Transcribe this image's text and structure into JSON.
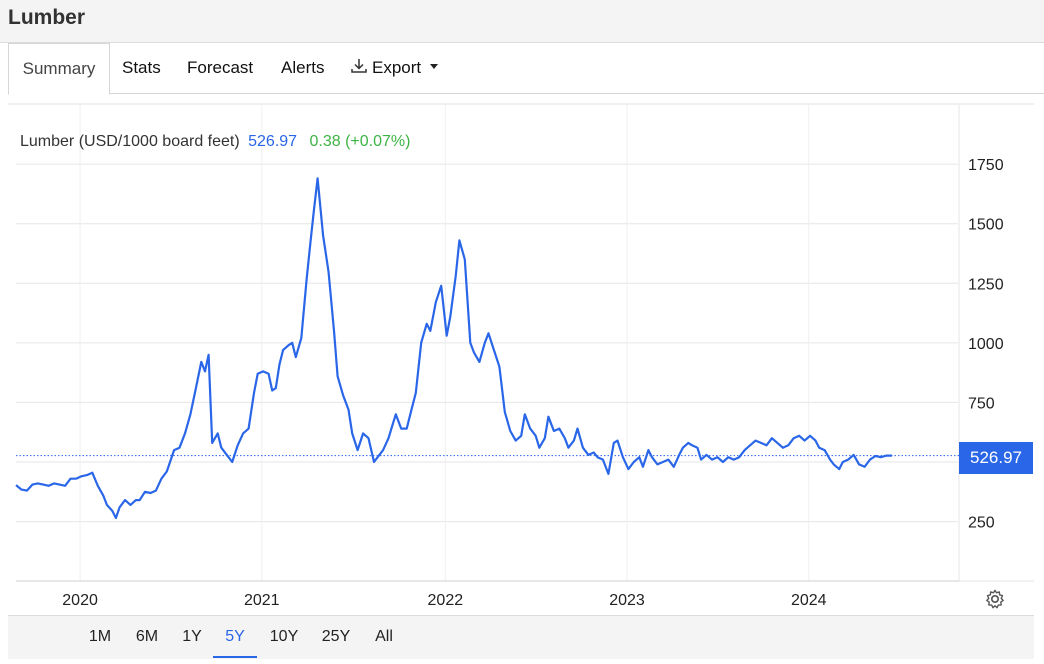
{
  "title": "Lumber",
  "tabs": [
    {
      "label": "Summary",
      "active": true
    },
    {
      "label": "Stats"
    },
    {
      "label": "Forecast"
    },
    {
      "label": "Alerts"
    },
    {
      "label": "Export",
      "icon": "download-icon",
      "dropdown": true
    }
  ],
  "legend": {
    "label": "Lumber (USD/1000 board feet)",
    "value": "526.97",
    "change": "0.38 (+0.07%)"
  },
  "price_tag": "526.97",
  "ranges": [
    "1M",
    "6M",
    "1Y",
    "5Y",
    "10Y",
    "25Y",
    "All"
  ],
  "active_range": "5Y",
  "colors": {
    "line": "#2a66e8",
    "change": "#3cb444",
    "grid": "#e6e6e6"
  },
  "chart_data": {
    "type": "line",
    "title": "Lumber (USD/1000 board feet)",
    "xlabel": "",
    "ylabel": "",
    "x_ticks": [
      "2020",
      "2021",
      "2022",
      "2023",
      "2024"
    ],
    "y_ticks": [
      250,
      500,
      750,
      1000,
      1250,
      1500,
      1750
    ],
    "y_tick_labels": [
      "250",
      "750",
      "1000",
      "1250",
      "1500",
      "1750"
    ],
    "ylim": [
      0,
      2000
    ],
    "xlim": [
      2019.83,
      2024.97
    ],
    "grid": true,
    "last_value": 526.97,
    "series": [
      {
        "name": "Lumber",
        "points": [
          [
            2019.83,
            403
          ],
          [
            2019.86,
            384
          ],
          [
            2019.89,
            380
          ],
          [
            2019.92,
            405
          ],
          [
            2019.95,
            410
          ],
          [
            2019.98,
            405
          ],
          [
            2020.01,
            400
          ],
          [
            2020.04,
            410
          ],
          [
            2020.07,
            405
          ],
          [
            2020.1,
            400
          ],
          [
            2020.13,
            430
          ],
          [
            2020.16,
            430
          ],
          [
            2020.19,
            440
          ],
          [
            2020.22,
            445
          ],
          [
            2020.25,
            455
          ],
          [
            2020.28,
            400
          ],
          [
            2020.31,
            360
          ],
          [
            2020.33,
            320
          ],
          [
            2020.36,
            295
          ],
          [
            2020.38,
            265
          ],
          [
            2020.4,
            310
          ],
          [
            2020.43,
            340
          ],
          [
            2020.46,
            320
          ],
          [
            2020.49,
            340
          ],
          [
            2020.51,
            340
          ],
          [
            2020.54,
            375
          ],
          [
            2020.57,
            370
          ],
          [
            2020.6,
            380
          ],
          [
            2020.63,
            430
          ],
          [
            2020.66,
            460
          ],
          [
            2020.7,
            550
          ],
          [
            2020.73,
            560
          ],
          [
            2020.76,
            620
          ],
          [
            2020.79,
            700
          ],
          [
            2020.82,
            810
          ],
          [
            2020.85,
            920
          ],
          [
            2020.87,
            880
          ],
          [
            2020.89,
            950
          ],
          [
            2020.91,
            580
          ],
          [
            2020.94,
            620
          ],
          [
            2020.96,
            560
          ],
          [
            2020.99,
            530
          ],
          [
            2021.02,
            500
          ],
          [
            2021.05,
            570
          ],
          [
            2021.08,
            620
          ],
          [
            2021.11,
            640
          ],
          [
            2021.14,
            790
          ],
          [
            2021.16,
            870
          ],
          [
            2021.19,
            880
          ],
          [
            2021.22,
            870
          ],
          [
            2021.24,
            800
          ],
          [
            2021.26,
            810
          ],
          [
            2021.28,
            910
          ],
          [
            2021.3,
            970
          ],
          [
            2021.33,
            990
          ],
          [
            2021.35,
            1000
          ],
          [
            2021.37,
            940
          ],
          [
            2021.4,
            1020
          ],
          [
            2021.43,
            1270
          ],
          [
            2021.45,
            1420
          ],
          [
            2021.47,
            1560
          ],
          [
            2021.49,
            1690
          ],
          [
            2021.52,
            1450
          ],
          [
            2021.55,
            1300
          ],
          [
            2021.58,
            1050
          ],
          [
            2021.6,
            860
          ],
          [
            2021.63,
            780
          ],
          [
            2021.66,
            720
          ],
          [
            2021.68,
            620
          ],
          [
            2021.71,
            550
          ],
          [
            2021.74,
            620
          ],
          [
            2021.77,
            600
          ],
          [
            2021.8,
            500
          ],
          [
            2021.82,
            520
          ],
          [
            2021.85,
            550
          ],
          [
            2021.88,
            600
          ],
          [
            2021.9,
            650
          ],
          [
            2021.92,
            700
          ],
          [
            2021.95,
            640
          ],
          [
            2021.98,
            640
          ],
          [
            2022.0,
            700
          ],
          [
            2022.03,
            790
          ],
          [
            2022.06,
            1000
          ],
          [
            2022.09,
            1080
          ],
          [
            2022.11,
            1050
          ],
          [
            2022.14,
            1170
          ],
          [
            2022.17,
            1240
          ],
          [
            2022.2,
            1030
          ],
          [
            2022.22,
            1110
          ],
          [
            2022.25,
            1280
          ],
          [
            2022.27,
            1430
          ],
          [
            2022.3,
            1350
          ],
          [
            2022.33,
            1000
          ],
          [
            2022.35,
            960
          ],
          [
            2022.38,
            920
          ],
          [
            2022.41,
            1000
          ],
          [
            2022.43,
            1040
          ],
          [
            2022.46,
            970
          ],
          [
            2022.49,
            900
          ],
          [
            2022.52,
            710
          ],
          [
            2022.55,
            630
          ],
          [
            2022.58,
            590
          ],
          [
            2022.61,
            610
          ],
          [
            2022.63,
            700
          ],
          [
            2022.66,
            640
          ],
          [
            2022.69,
            610
          ],
          [
            2022.71,
            560
          ],
          [
            2022.74,
            600
          ],
          [
            2022.76,
            690
          ],
          [
            2022.79,
            630
          ],
          [
            2022.82,
            640
          ],
          [
            2022.85,
            600
          ],
          [
            2022.87,
            560
          ],
          [
            2022.9,
            590
          ],
          [
            2022.92,
            640
          ],
          [
            2022.95,
            560
          ],
          [
            2022.98,
            530
          ],
          [
            2023.01,
            540
          ],
          [
            2023.03,
            520
          ],
          [
            2023.06,
            510
          ],
          [
            2023.09,
            450
          ],
          [
            2023.12,
            580
          ],
          [
            2023.14,
            590
          ],
          [
            2023.17,
            520
          ],
          [
            2023.2,
            470
          ],
          [
            2023.23,
            500
          ],
          [
            2023.26,
            520
          ],
          [
            2023.28,
            480
          ],
          [
            2023.31,
            550
          ],
          [
            2023.33,
            520
          ],
          [
            2023.36,
            490
          ],
          [
            2023.39,
            500
          ],
          [
            2023.42,
            510
          ],
          [
            2023.45,
            480
          ],
          [
            2023.48,
            530
          ],
          [
            2023.5,
            560
          ],
          [
            2023.53,
            580
          ],
          [
            2023.55,
            570
          ],
          [
            2023.58,
            560
          ],
          [
            2023.6,
            510
          ],
          [
            2023.63,
            530
          ],
          [
            2023.66,
            510
          ],
          [
            2023.69,
            520
          ],
          [
            2023.72,
            500
          ],
          [
            2023.75,
            520
          ],
          [
            2023.78,
            510
          ],
          [
            2023.81,
            520
          ],
          [
            2023.84,
            550
          ],
          [
            2023.87,
            570
          ],
          [
            2023.9,
            590
          ],
          [
            2023.93,
            580
          ],
          [
            2023.96,
            570
          ],
          [
            2023.99,
            600
          ],
          [
            2024.02,
            580
          ],
          [
            2024.05,
            560
          ],
          [
            2024.08,
            570
          ],
          [
            2024.11,
            600
          ],
          [
            2024.14,
            610
          ],
          [
            2024.17,
            590
          ],
          [
            2024.2,
            610
          ],
          [
            2024.23,
            590
          ],
          [
            2024.25,
            560
          ],
          [
            2024.28,
            550
          ],
          [
            2024.31,
            510
          ],
          [
            2024.33,
            490
          ],
          [
            2024.36,
            470
          ],
          [
            2024.38,
            500
          ],
          [
            2024.41,
            510
          ],
          [
            2024.44,
            530
          ],
          [
            2024.47,
            490
          ],
          [
            2024.5,
            480
          ],
          [
            2024.53,
            510
          ],
          [
            2024.56,
            525
          ],
          [
            2024.59,
            520
          ],
          [
            2024.62,
            527
          ],
          [
            2024.65,
            527
          ]
        ]
      }
    ]
  }
}
